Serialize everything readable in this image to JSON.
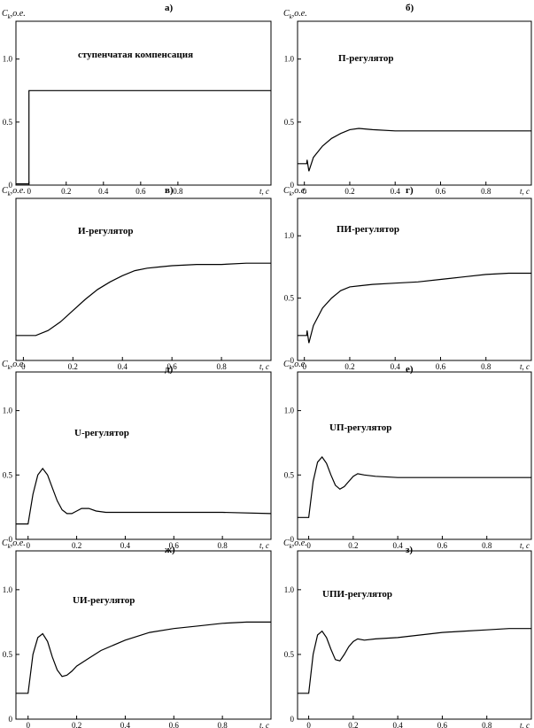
{
  "chart_data": [
    {
      "type": "line",
      "letter": "а)",
      "title": "ступенчатая компенсация",
      "ylabel_main": "C",
      "ylabel_sub": "k",
      "ylabel_rest": ",о.е.",
      "xlabel": "t, с",
      "ylim": [
        0,
        1.3
      ],
      "xlim": [
        -0.07,
        1.3
      ],
      "yticks": [
        0,
        0.5,
        1.0
      ],
      "ytick_labels": [
        "0",
        "0.5",
        "1.0"
      ],
      "xticks": [
        0,
        0.2,
        0.4,
        0.6,
        0.8
      ],
      "xtick_labels": [
        "0",
        "0.2",
        "0.4",
        "0.6",
        "0.8"
      ],
      "x": [
        -0.07,
        0,
        0,
        1.3
      ],
      "y": [
        0.01,
        0.01,
        0.75,
        0.75
      ]
    },
    {
      "type": "line",
      "letter": "б)",
      "title": "П-регулятор",
      "ylabel_main": "C",
      "ylabel_sub": "k",
      "ylabel_rest": ",о.е.",
      "xlabel": "t, с",
      "ylim": [
        0,
        1.3
      ],
      "xlim": [
        -0.03,
        1.0
      ],
      "yticks": [
        0,
        0.5,
        1.0
      ],
      "ytick_labels": [
        "0",
        "0.5",
        "1.0"
      ],
      "xticks": [
        0,
        0.2,
        0.4,
        0.6,
        0.8
      ],
      "xtick_labels": [
        "0",
        "0.2",
        "0.4",
        "0.6",
        "0.8"
      ],
      "x": [
        -0.03,
        0.01,
        0.012,
        0.02,
        0.04,
        0.08,
        0.12,
        0.16,
        0.2,
        0.24,
        0.3,
        0.4,
        0.5,
        0.6,
        0.7,
        0.8,
        0.9,
        1.0
      ],
      "y": [
        0.17,
        0.17,
        0.2,
        0.11,
        0.22,
        0.31,
        0.37,
        0.41,
        0.44,
        0.45,
        0.44,
        0.43,
        0.43,
        0.43,
        0.43,
        0.43,
        0.43,
        0.43
      ]
    },
    {
      "type": "line",
      "letter": "в)",
      "title": "И-регулятор",
      "ylabel_main": "C",
      "ylabel_sub": "k",
      "ylabel_rest": ",о.е.",
      "xlabel": "t, с",
      "ylim": [
        0,
        1.3
      ],
      "xlim": [
        -0.03,
        1.0
      ],
      "yticks": [],
      "ytick_labels": [],
      "xticks": [
        0,
        0.2,
        0.4,
        0.6,
        0.8
      ],
      "xtick_labels": [
        "0",
        "0.2",
        "0.4",
        "0.6",
        "0.8"
      ],
      "x": [
        -0.03,
        0.05,
        0.1,
        0.15,
        0.2,
        0.25,
        0.3,
        0.35,
        0.4,
        0.45,
        0.5,
        0.55,
        0.6,
        0.7,
        0.8,
        0.9,
        1.0
      ],
      "y": [
        0.2,
        0.2,
        0.24,
        0.31,
        0.4,
        0.49,
        0.57,
        0.63,
        0.68,
        0.72,
        0.74,
        0.75,
        0.76,
        0.77,
        0.77,
        0.78,
        0.78
      ]
    },
    {
      "type": "line",
      "letter": "г)",
      "title": "ПИ-регулятор",
      "ylabel_main": "C",
      "ylabel_sub": "k",
      "ylabel_rest": ",о.е.",
      "xlabel": "t, с",
      "ylim": [
        0,
        1.3
      ],
      "xlim": [
        -0.03,
        1.0
      ],
      "yticks": [
        0,
        0.5,
        1.0
      ],
      "ytick_labels": [
        "0",
        "0.5",
        "1.0"
      ],
      "xticks": [
        0,
        0.2,
        0.4,
        0.6,
        0.8
      ],
      "xtick_labels": [
        "0",
        "0.2",
        "0.4",
        "0.6",
        "0.8"
      ],
      "x": [
        -0.03,
        0.01,
        0.012,
        0.02,
        0.04,
        0.08,
        0.12,
        0.16,
        0.2,
        0.25,
        0.3,
        0.4,
        0.5,
        0.6,
        0.7,
        0.8,
        0.9,
        1.0
      ],
      "y": [
        0.2,
        0.2,
        0.24,
        0.14,
        0.28,
        0.42,
        0.5,
        0.56,
        0.59,
        0.6,
        0.61,
        0.62,
        0.63,
        0.65,
        0.67,
        0.69,
        0.7,
        0.7
      ]
    },
    {
      "type": "line",
      "letter": "д)",
      "title": "U-регулятор",
      "ylabel_main": "C",
      "ylabel_sub": "k",
      "ylabel_rest": ",о.е.",
      "xlabel": "t, с",
      "ylim": [
        0,
        1.3
      ],
      "xlim": [
        -0.05,
        1.0
      ],
      "yticks": [
        0,
        0.5,
        1.0
      ],
      "ytick_labels": [
        "0",
        "0.5",
        "1.0"
      ],
      "xticks": [
        0,
        0.2,
        0.4,
        0.6,
        0.8
      ],
      "xtick_labels": [
        "0",
        "0.2",
        "0.4",
        "0.6",
        "0.8"
      ],
      "x": [
        -0.05,
        0.0,
        0.02,
        0.04,
        0.06,
        0.08,
        0.1,
        0.12,
        0.14,
        0.16,
        0.18,
        0.2,
        0.22,
        0.25,
        0.28,
        0.32,
        0.4,
        0.6,
        0.8,
        1.0
      ],
      "y": [
        0.12,
        0.12,
        0.35,
        0.5,
        0.55,
        0.5,
        0.4,
        0.3,
        0.23,
        0.2,
        0.2,
        0.22,
        0.24,
        0.24,
        0.22,
        0.21,
        0.21,
        0.21,
        0.21,
        0.2
      ]
    },
    {
      "type": "line",
      "letter": "е)",
      "title": "UП-регулятор",
      "ylabel_main": "C",
      "ylabel_sub": "k",
      "ylabel_rest": ",о.е.",
      "xlabel": "t, с",
      "ylim": [
        0,
        1.3
      ],
      "xlim": [
        -0.05,
        1.0
      ],
      "yticks": [
        0,
        0.5,
        1.0
      ],
      "ytick_labels": [
        "0",
        "0.5",
        "1.0"
      ],
      "xticks": [
        0,
        0.2,
        0.4,
        0.6,
        0.8
      ],
      "xtick_labels": [
        "0",
        "0.2",
        "0.4",
        "0.6",
        "0.8"
      ],
      "x": [
        -0.05,
        0.0,
        0.02,
        0.04,
        0.06,
        0.08,
        0.1,
        0.12,
        0.14,
        0.16,
        0.18,
        0.2,
        0.22,
        0.25,
        0.3,
        0.4,
        0.6,
        0.8,
        1.0
      ],
      "y": [
        0.17,
        0.17,
        0.45,
        0.6,
        0.64,
        0.59,
        0.5,
        0.42,
        0.39,
        0.41,
        0.45,
        0.49,
        0.51,
        0.5,
        0.49,
        0.48,
        0.48,
        0.48,
        0.48
      ]
    },
    {
      "type": "line",
      "letter": "ж)",
      "title": "UИ-регулятор",
      "ylabel_main": "C",
      "ylabel_sub": "k",
      "ylabel_rest": ",о.е.",
      "xlabel": "t, с",
      "ylim": [
        0,
        1.3
      ],
      "xlim": [
        -0.05,
        1.0
      ],
      "yticks": [
        0,
        0.5,
        1.0
      ],
      "ytick_labels": [
        "0",
        "0.5",
        "1.0"
      ],
      "xticks": [
        0,
        0.2,
        0.4,
        0.6,
        0.8
      ],
      "xtick_labels": [
        "0",
        "0.2",
        "0.4",
        "0.6",
        "0.8"
      ],
      "x": [
        -0.05,
        0.0,
        0.02,
        0.04,
        0.06,
        0.08,
        0.1,
        0.12,
        0.14,
        0.16,
        0.18,
        0.2,
        0.25,
        0.3,
        0.4,
        0.5,
        0.6,
        0.7,
        0.8,
        0.9,
        1.0
      ],
      "y": [
        0.2,
        0.2,
        0.5,
        0.63,
        0.66,
        0.6,
        0.48,
        0.38,
        0.33,
        0.34,
        0.37,
        0.41,
        0.47,
        0.53,
        0.61,
        0.67,
        0.7,
        0.72,
        0.74,
        0.75,
        0.75
      ]
    },
    {
      "type": "line",
      "letter": "з)",
      "title": "UПИ-регулятор",
      "ylabel_main": "C",
      "ylabel_sub": "k",
      "ylabel_rest": ",о.е.",
      "xlabel": "t, с",
      "ylim": [
        0,
        1.3
      ],
      "xlim": [
        -0.05,
        1.0
      ],
      "yticks": [
        0,
        0.5,
        1.0
      ],
      "ytick_labels": [
        "0",
        "0.5",
        "1.0"
      ],
      "xticks": [
        0,
        0.2,
        0.4,
        0.6,
        0.8
      ],
      "xtick_labels": [
        "0",
        "0.2",
        "0.4",
        "0.6",
        "0.8"
      ],
      "x": [
        -0.05,
        0.0,
        0.02,
        0.04,
        0.06,
        0.08,
        0.1,
        0.12,
        0.14,
        0.16,
        0.18,
        0.2,
        0.22,
        0.25,
        0.3,
        0.4,
        0.5,
        0.6,
        0.7,
        0.8,
        0.9,
        1.0
      ],
      "y": [
        0.2,
        0.2,
        0.5,
        0.65,
        0.68,
        0.63,
        0.54,
        0.46,
        0.45,
        0.5,
        0.56,
        0.6,
        0.62,
        0.61,
        0.62,
        0.63,
        0.65,
        0.67,
        0.68,
        0.69,
        0.7,
        0.7
      ]
    }
  ]
}
